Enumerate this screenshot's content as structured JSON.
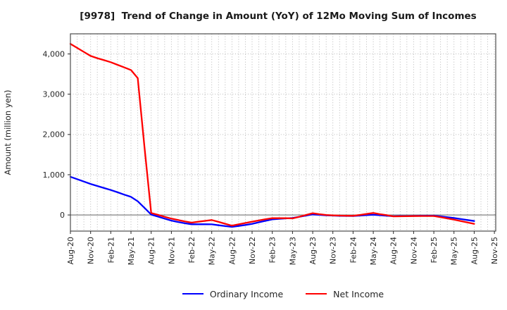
{
  "chart_data": {
    "type": "line",
    "title": "[9978]  Trend of Change in Amount (YoY) of 12Mo Moving Sum of Incomes",
    "xlabel": "",
    "ylabel": "Amount (million yen)",
    "x_unit": "month",
    "x_start": "Aug-20",
    "x_end_of_data": "Aug-25",
    "months_per_tick": 3,
    "x_tick_labels": [
      "Aug-20",
      "Nov-20",
      "Feb-21",
      "May-21",
      "Aug-21",
      "Nov-21",
      "Feb-22",
      "May-22",
      "Aug-22",
      "Nov-22",
      "Feb-23",
      "May-23",
      "Aug-23",
      "Nov-23",
      "Feb-24",
      "May-24",
      "Aug-24",
      "Nov-24",
      "Feb-25",
      "May-25",
      "Aug-25",
      "Nov-25"
    ],
    "y_ticks": [
      "0",
      "1,000",
      "2,000",
      "3,000",
      "4,000"
    ],
    "y_tick_values": [
      0,
      1000,
      2000,
      3000,
      4000
    ],
    "ylim": [
      -400,
      4500
    ],
    "xlim_months": [
      0,
      63.2
    ],
    "grid": true,
    "zero_line": true,
    "legend_position": "bottom-center",
    "colors": {
      "grid": "#b0b0b0",
      "zero_line": "#808080",
      "frame": "#4d4d4d",
      "text": "#262626",
      "background": "#ffffff"
    },
    "series": [
      {
        "name": "Ordinary Income",
        "color": "#0000ff",
        "values": [
          950,
          890,
          830,
          770,
          720,
          670,
          620,
          565,
          505,
          450,
          340,
          180,
          10,
          -40,
          -90,
          -140,
          -175,
          -205,
          -230,
          -230,
          -230,
          -232,
          -255,
          -275,
          -295,
          -272,
          -248,
          -222,
          -182,
          -145,
          -110,
          -95,
          -85,
          -75,
          -45,
          -15,
          15,
          2,
          -8,
          -15,
          -20,
          -23,
          -25,
          -15,
          -5,
          5,
          -6,
          -18,
          -30,
          -27,
          -25,
          -22,
          -20,
          -19,
          -18,
          -35,
          -55,
          -75,
          -100,
          -125,
          -150
        ]
      },
      {
        "name": "Net Income",
        "color": "#ff0000",
        "values": [
          4250,
          4150,
          4050,
          3950,
          3895,
          3845,
          3795,
          3730,
          3665,
          3600,
          3400,
          1700,
          50,
          5,
          -45,
          -90,
          -125,
          -160,
          -190,
          -168,
          -146,
          -125,
          -170,
          -218,
          -265,
          -232,
          -198,
          -165,
          -135,
          -105,
          -80,
          -80,
          -80,
          -85,
          -45,
          0,
          45,
          20,
          0,
          -10,
          -15,
          -18,
          -20,
          0,
          25,
          50,
          20,
          -5,
          -35,
          -33,
          -30,
          -28,
          -26,
          -25,
          -25,
          -55,
          -85,
          -115,
          -150,
          -185,
          -220
        ]
      }
    ]
  }
}
